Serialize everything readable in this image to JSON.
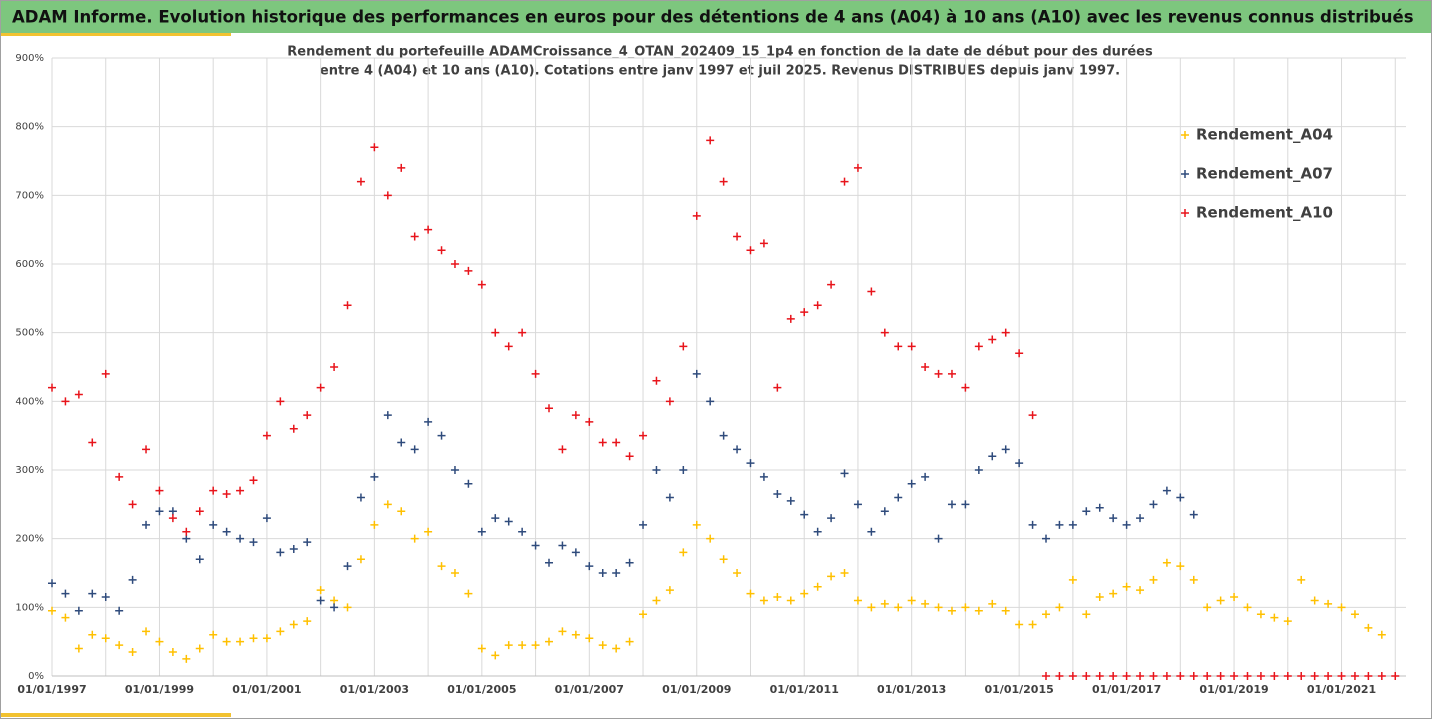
{
  "header": {
    "title": "ADAM Informe. Evolution historique des performances en euros pour des détentions de 4 ans (A04) à 10 ans (A10) avec les revenus connus distribués"
  },
  "chart_data": {
    "type": "scatter",
    "subtitle": [
      "Rendement du portefeuille ADAMCroissance_4_OTAN_202409_15_1p4  en fonction de la date de début pour des durées",
      "entre 4 (A04) et 10 ans (A10). Cotations entre janv 1997 et juil 2025. Revenus DISTRIBUES depuis janv 1997."
    ],
    "x": [
      1997,
      1997.25,
      1997.5,
      1997.75,
      1998,
      1998.25,
      1998.5,
      1998.75,
      1999,
      1999.25,
      1999.5,
      1999.75,
      2000,
      2000.25,
      2000.5,
      2000.75,
      2001,
      2001.25,
      2001.5,
      2001.75,
      2002,
      2002.25,
      2002.5,
      2002.75,
      2003,
      2003.25,
      2003.5,
      2003.75,
      2004,
      2004.25,
      2004.5,
      2004.75,
      2005,
      2005.25,
      2005.5,
      2005.75,
      2006,
      2006.25,
      2006.5,
      2006.75,
      2007,
      2007.25,
      2007.5,
      2007.75,
      2008,
      2008.25,
      2008.5,
      2008.75,
      2009,
      2009.25,
      2009.5,
      2009.75,
      2010,
      2010.25,
      2010.5,
      2010.75,
      2011,
      2011.25,
      2011.5,
      2011.75,
      2012,
      2012.25,
      2012.5,
      2012.75,
      2013,
      2013.25,
      2013.5,
      2013.75,
      2014,
      2014.25,
      2014.5,
      2014.75,
      2015,
      2015.25,
      2015.5,
      2015.75,
      2016,
      2016.25,
      2016.5,
      2016.75,
      2017,
      2017.25,
      2017.5,
      2017.75,
      2018,
      2018.25,
      2018.5,
      2018.75,
      2019,
      2019.25,
      2019.5,
      2019.75,
      2020,
      2020.25,
      2020.5,
      2020.75,
      2021,
      2021.25,
      2021.5,
      2021.75,
      2022
    ],
    "series": [
      {
        "name": "Rendement_A04",
        "color": "#ffc000",
        "values": [
          95,
          85,
          40,
          60,
          55,
          45,
          35,
          65,
          50,
          35,
          25,
          40,
          60,
          50,
          50,
          55,
          55,
          65,
          75,
          80,
          125,
          110,
          100,
          170,
          220,
          250,
          240,
          200,
          210,
          160,
          150,
          120,
          40,
          30,
          45,
          45,
          45,
          50,
          65,
          60,
          55,
          45,
          40,
          50,
          90,
          110,
          125,
          180,
          220,
          200,
          170,
          150,
          120,
          110,
          115,
          110,
          120,
          130,
          145,
          150,
          110,
          100,
          105,
          100,
          110,
          105,
          100,
          95,
          100,
          95,
          105,
          95,
          75,
          75,
          90,
          100,
          140,
          90,
          115,
          120,
          130,
          125,
          140,
          165,
          160,
          140,
          100,
          110,
          115,
          100,
          90,
          85,
          80,
          140,
          110,
          105,
          100,
          90,
          70,
          60,
          null
        ]
      },
      {
        "name": "Rendement_A07",
        "color": "#2f4b7c",
        "values": [
          135,
          120,
          95,
          120,
          115,
          95,
          140,
          220,
          240,
          240,
          200,
          170,
          220,
          210,
          200,
          195,
          230,
          180,
          185,
          195,
          110,
          100,
          160,
          260,
          290,
          380,
          340,
          330,
          370,
          350,
          300,
          280,
          210,
          230,
          225,
          210,
          190,
          165,
          190,
          180,
          160,
          150,
          150,
          165,
          220,
          300,
          260,
          300,
          440,
          400,
          350,
          330,
          310,
          290,
          265,
          255,
          235,
          210,
          230,
          295,
          250,
          210,
          240,
          260,
          280,
          290,
          200,
          250,
          250,
          300,
          320,
          330,
          310,
          220,
          200,
          220,
          220,
          240,
          245,
          230,
          220,
          230,
          250,
          270,
          260,
          235,
          null,
          null,
          null,
          null,
          null,
          null,
          null,
          null,
          null,
          null,
          null,
          null,
          null,
          null,
          null
        ]
      },
      {
        "name": "Rendement_A10",
        "color": "#e8141b",
        "values": [
          420,
          400,
          410,
          340,
          440,
          290,
          250,
          330,
          270,
          230,
          210,
          240,
          270,
          265,
          270,
          285,
          350,
          400,
          360,
          380,
          420,
          450,
          540,
          720,
          770,
          700,
          740,
          640,
          650,
          620,
          600,
          590,
          570,
          500,
          480,
          500,
          440,
          390,
          330,
          380,
          370,
          340,
          340,
          320,
          350,
          430,
          400,
          480,
          670,
          780,
          720,
          640,
          620,
          630,
          420,
          520,
          530,
          540,
          570,
          720,
          740,
          560,
          500,
          480,
          480,
          450,
          440,
          440,
          420,
          480,
          490,
          500,
          470,
          380,
          0,
          0,
          0,
          0,
          0,
          0,
          0,
          0,
          0,
          0,
          0,
          0,
          0,
          0,
          0,
          0,
          0,
          0,
          0,
          0,
          0,
          0,
          0,
          0,
          0,
          0,
          0
        ]
      }
    ],
    "xlim": [
      1997,
      2022.2
    ],
    "xticks": [
      {
        "value": 1997,
        "label": "01/01/1997"
      },
      {
        "value": 1999,
        "label": "01/01/1999"
      },
      {
        "value": 2001,
        "label": "01/01/2001"
      },
      {
        "value": 2003,
        "label": "01/01/2003"
      },
      {
        "value": 2005,
        "label": "01/01/2005"
      },
      {
        "value": 2007,
        "label": "01/01/2007"
      },
      {
        "value": 2009,
        "label": "01/01/2009"
      },
      {
        "value": 2011,
        "label": "01/01/2011"
      },
      {
        "value": 2013,
        "label": "01/01/2013"
      },
      {
        "value": 2015,
        "label": "01/01/2015"
      },
      {
        "value": 2017,
        "label": "01/01/2017"
      },
      {
        "value": 2019,
        "label": "01/01/2019"
      },
      {
        "value": 2021,
        "label": "01/01/2021"
      }
    ],
    "x_minor_ticks": [
      1998,
      2000,
      2002,
      2004,
      2006,
      2008,
      2010,
      2012,
      2014,
      2016,
      2018,
      2020,
      2022
    ],
    "ylim": [
      0,
      900
    ],
    "yticks": [
      {
        "value": 0,
        "label": "0%"
      },
      {
        "value": 100,
        "label": "100%"
      },
      {
        "value": 200,
        "label": "200%"
      },
      {
        "value": 300,
        "label": "300%"
      },
      {
        "value": 400,
        "label": "400%"
      },
      {
        "value": 500,
        "label": "500%"
      },
      {
        "value": 600,
        "label": "600%"
      },
      {
        "value": 700,
        "label": "700%"
      },
      {
        "value": 800,
        "label": "800%"
      },
      {
        "value": 900,
        "label": "900%"
      }
    ],
    "grid": true,
    "legend": "upper right"
  }
}
